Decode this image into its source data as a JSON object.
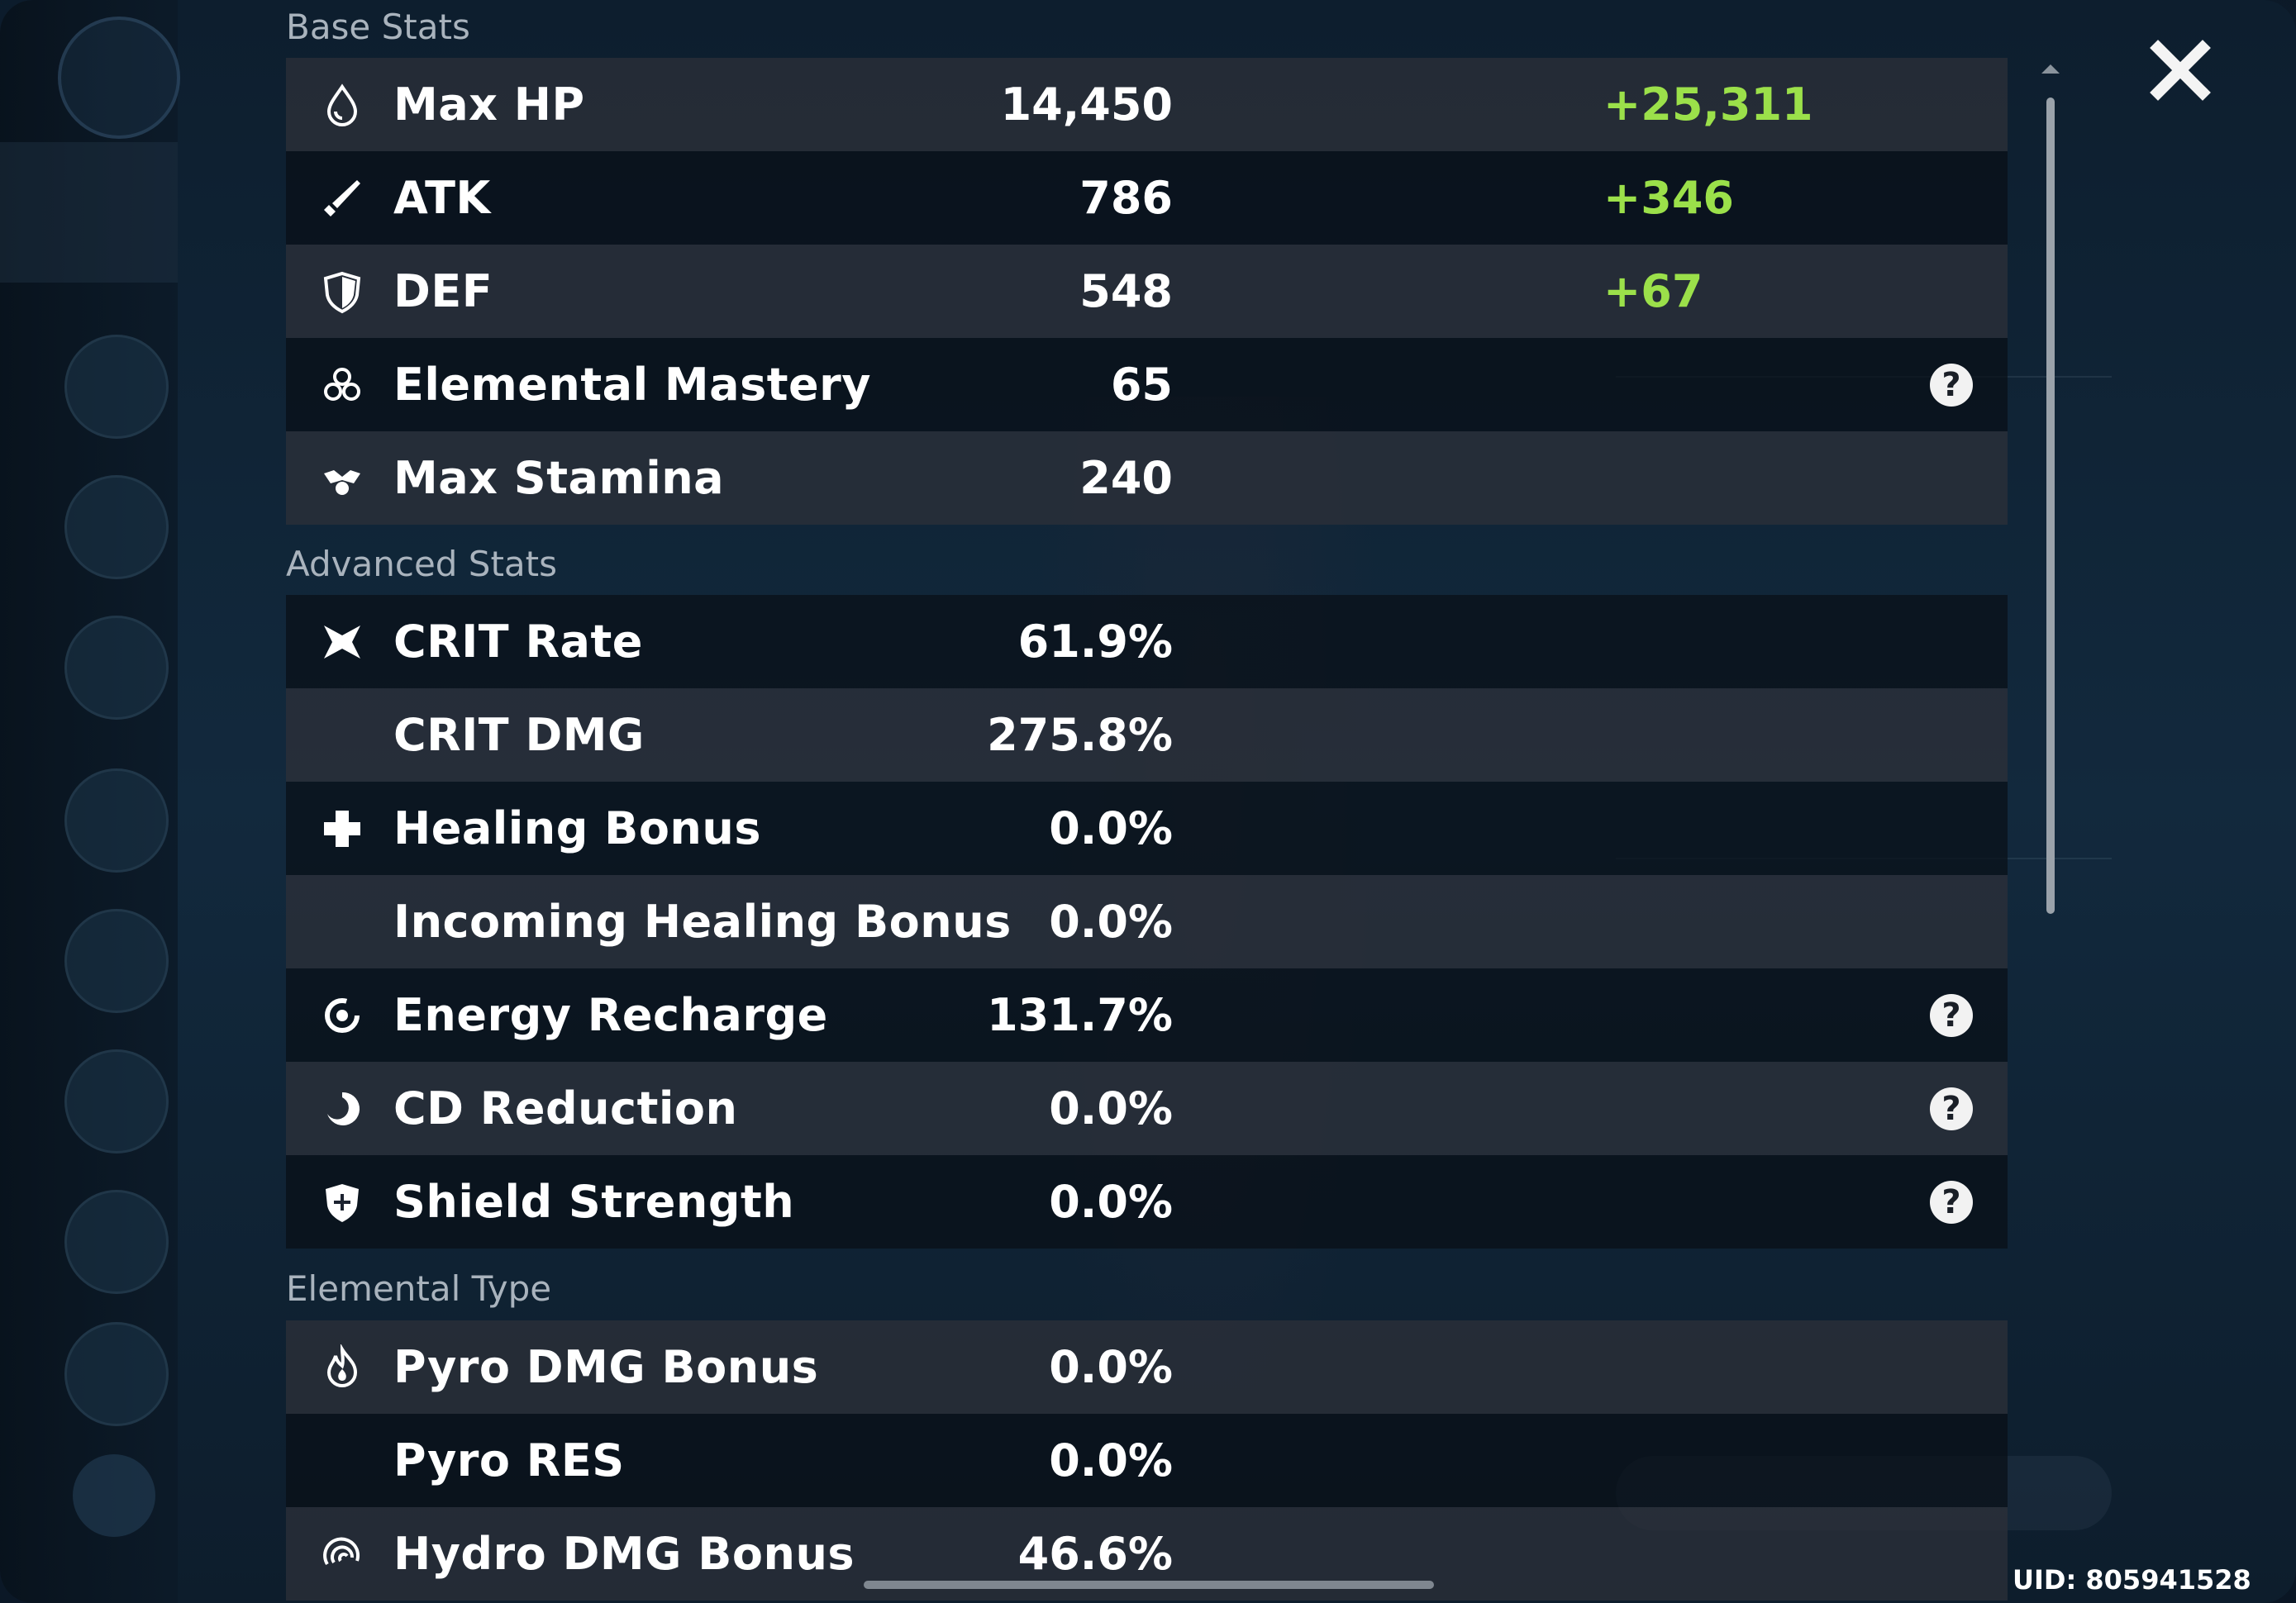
{
  "sections": {
    "base": "Base Stats",
    "advanced": "Advanced Stats",
    "elemental": "Elemental Type"
  },
  "base_stats": [
    {
      "name": "Max HP",
      "value": "14,450",
      "bonus": "+25,311",
      "icon": "water-drop-icon"
    },
    {
      "name": "ATK",
      "value": "786",
      "bonus": "+346",
      "icon": "sword-icon"
    },
    {
      "name": "DEF",
      "value": "548",
      "bonus": "+67",
      "icon": "shield-icon"
    },
    {
      "name": "Elemental Mastery",
      "value": "65",
      "bonus": "",
      "icon": "atom-icon",
      "help": "?"
    },
    {
      "name": "Max Stamina",
      "value": "240",
      "bonus": "",
      "icon": "stamina-icon"
    }
  ],
  "advanced_stats": [
    {
      "name": "CRIT Rate",
      "value": "61.9%",
      "icon": "crit-icon"
    },
    {
      "name": "CRIT DMG",
      "value": "275.8%",
      "icon": ""
    },
    {
      "name": "Healing Bonus",
      "value": "0.0%",
      "icon": "plus-cross-icon"
    },
    {
      "name": "Incoming Healing Bonus",
      "value": "0.0%",
      "icon": ""
    },
    {
      "name": "Energy Recharge",
      "value": "131.7%",
      "icon": "recharge-ring-icon",
      "help": "?"
    },
    {
      "name": "CD Reduction",
      "value": "0.0%",
      "icon": "cooldown-icon",
      "help": "?"
    },
    {
      "name": "Shield Strength",
      "value": "0.0%",
      "icon": "shield-plus-icon",
      "help": "?"
    }
  ],
  "elemental_stats": [
    {
      "name": "Pyro DMG Bonus",
      "value": "0.0%",
      "icon": "pyro-flame-icon"
    },
    {
      "name": "Pyro RES",
      "value": "0.0%",
      "icon": ""
    },
    {
      "name": "Hydro DMG Bonus",
      "value": "46.6%",
      "icon": "hydro-swirl-icon"
    }
  ],
  "uid": "UID: 805941528",
  "close_icon": "close-icon"
}
